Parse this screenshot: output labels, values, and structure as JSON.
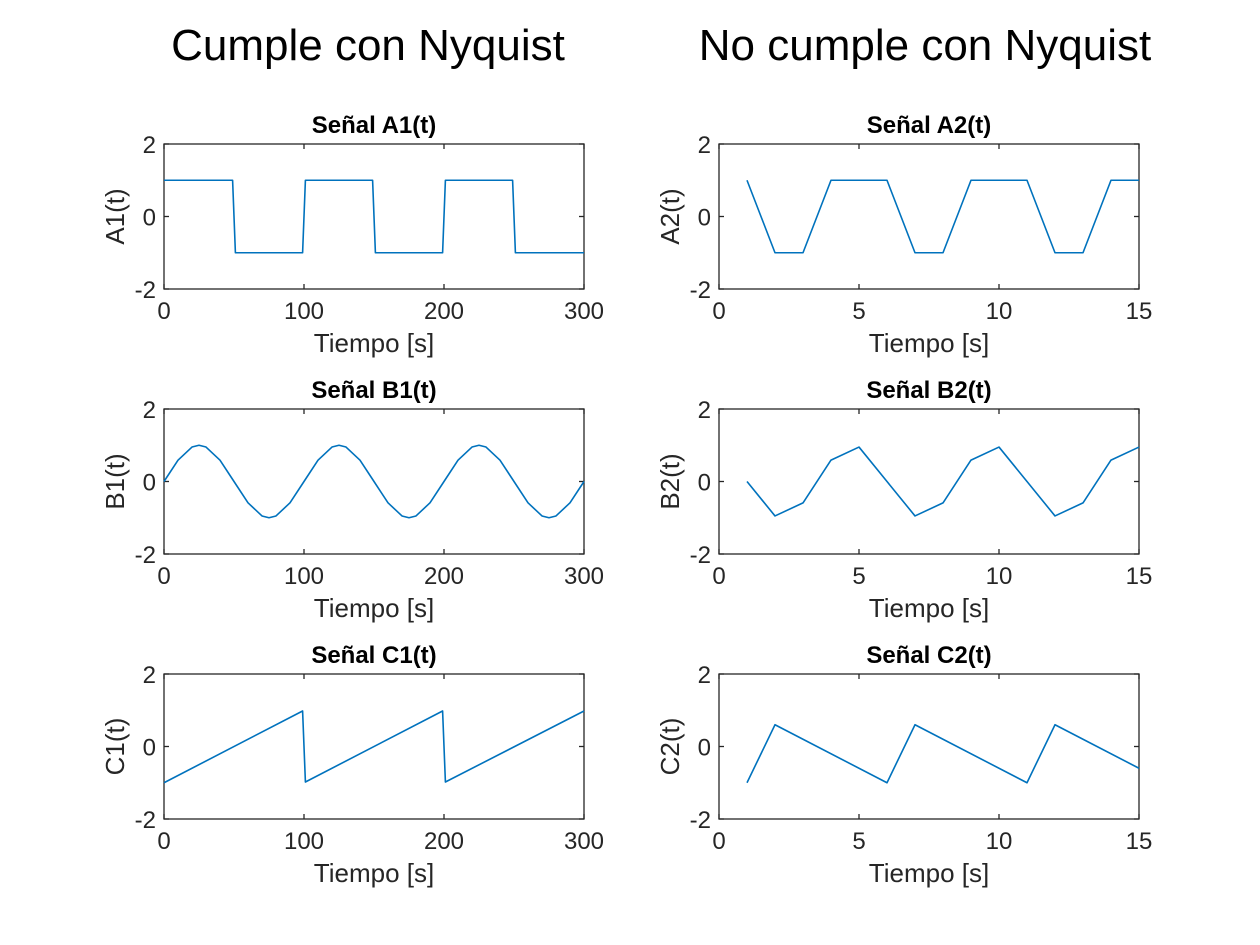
{
  "figure": {
    "column_titles": [
      "Cumple con Nyquist",
      "No cumple con Nyquist"
    ],
    "line_color": "#0072BD"
  },
  "chart_data": [
    {
      "type": "line",
      "title": "Señal A1(t)",
      "xlabel": "Tiempo [s]",
      "ylabel": "A1(t)",
      "xlim": [
        0,
        300
      ],
      "ylim": [
        -2,
        2
      ],
      "xticks": [
        0,
        100,
        200,
        300
      ],
      "yticks": [
        -2,
        0,
        2
      ],
      "series": [
        {
          "x": [
            0,
            49,
            51,
            99,
            101,
            149,
            151,
            199,
            201,
            249,
            251,
            300
          ],
          "y": [
            1,
            1,
            -1,
            -1,
            1,
            1,
            -1,
            -1,
            1,
            1,
            -1,
            -1
          ]
        }
      ]
    },
    {
      "type": "line",
      "title": "Señal A2(t)",
      "xlabel": "Tiempo [s]",
      "ylabel": "A2(t)",
      "xlim": [
        0,
        15
      ],
      "ylim": [
        -2,
        2
      ],
      "xticks": [
        0,
        5,
        10,
        15
      ],
      "yticks": [
        -2,
        0,
        2
      ],
      "series": [
        {
          "x": [
            1,
            2,
            3,
            4,
            5,
            6,
            7,
            8,
            9,
            10,
            11,
            12,
            13,
            14,
            15
          ],
          "y": [
            1,
            -1,
            -1,
            1,
            1,
            1,
            -1,
            -1,
            1,
            1,
            1,
            -1,
            -1,
            1,
            1
          ]
        }
      ]
    },
    {
      "type": "line",
      "title": "Señal B1(t)",
      "xlabel": "Tiempo [s]",
      "ylabel": "B1(t)",
      "xlim": [
        0,
        300
      ],
      "ylim": [
        -2,
        2
      ],
      "xticks": [
        0,
        100,
        200,
        300
      ],
      "yticks": [
        -2,
        0,
        2
      ],
      "series": [
        {
          "x": [
            0,
            10,
            20,
            25,
            30,
            40,
            50,
            60,
            70,
            75,
            80,
            90,
            100,
            110,
            120,
            125,
            130,
            140,
            150,
            160,
            170,
            175,
            180,
            190,
            200,
            210,
            220,
            225,
            230,
            240,
            250,
            260,
            270,
            275,
            280,
            290,
            300
          ],
          "y": [
            0,
            0.588,
            0.951,
            1,
            0.951,
            0.588,
            0,
            -0.588,
            -0.951,
            -1,
            -0.951,
            -0.588,
            0,
            0.588,
            0.951,
            1,
            0.951,
            0.588,
            0,
            -0.588,
            -0.951,
            -1,
            -0.951,
            -0.588,
            0,
            0.588,
            0.951,
            1,
            0.951,
            0.588,
            0,
            -0.588,
            -0.951,
            -1,
            -0.951,
            -0.588,
            0
          ]
        }
      ]
    },
    {
      "type": "line",
      "title": "Señal B2(t)",
      "xlabel": "Tiempo [s]",
      "ylabel": "B2(t)",
      "xlim": [
        0,
        15
      ],
      "ylim": [
        -2,
        2
      ],
      "xticks": [
        0,
        5,
        10,
        15
      ],
      "yticks": [
        -2,
        0,
        2
      ],
      "series": [
        {
          "x": [
            1,
            2,
            3,
            4,
            5,
            6,
            7,
            8,
            9,
            10,
            11,
            12,
            13,
            14,
            15
          ],
          "y": [
            0,
            -0.95,
            -0.59,
            0.59,
            0.95,
            0,
            -0.95,
            -0.59,
            0.59,
            0.95,
            0,
            -0.95,
            -0.59,
            0.59,
            0.95
          ]
        }
      ]
    },
    {
      "type": "line",
      "title": "Señal C1(t)",
      "xlabel": "Tiempo [s]",
      "ylabel": "C1(t)",
      "xlim": [
        0,
        300
      ],
      "ylim": [
        -2,
        2
      ],
      "xticks": [
        0,
        100,
        200,
        300
      ],
      "yticks": [
        -2,
        0,
        2
      ],
      "series": [
        {
          "x": [
            0,
            99,
            101,
            199,
            201,
            300
          ],
          "y": [
            -1,
            0.98,
            -0.98,
            0.98,
            -0.98,
            0.98
          ]
        }
      ]
    },
    {
      "type": "line",
      "title": "Señal C2(t)",
      "xlabel": "Tiempo [s]",
      "ylabel": "C2(t)",
      "xlim": [
        0,
        15
      ],
      "ylim": [
        -2,
        2
      ],
      "xticks": [
        0,
        5,
        10,
        15
      ],
      "yticks": [
        -2,
        0,
        2
      ],
      "series": [
        {
          "x": [
            1,
            2,
            6,
            7,
            11,
            12,
            15
          ],
          "y": [
            -1,
            0.6,
            -1,
            0.6,
            -1,
            0.6,
            -0.6
          ]
        }
      ]
    }
  ]
}
